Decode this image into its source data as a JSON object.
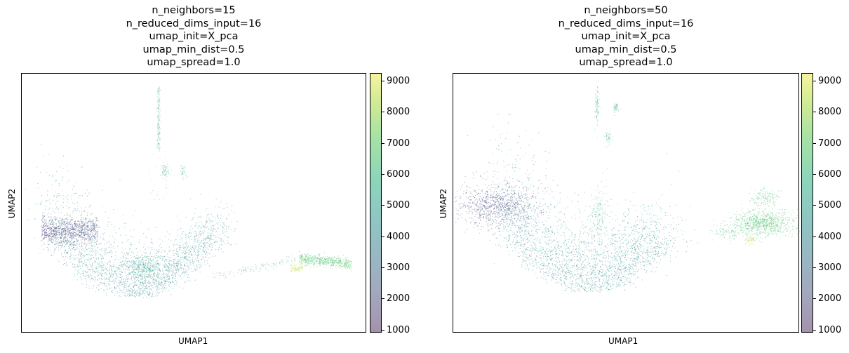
{
  "chart_data": [
    {
      "type": "scatter",
      "title_lines": [
        "n_neighbors=15",
        "n_reduced_dims_input=16",
        "umap_init=X_pca",
        "umap_min_dist=0.5",
        "umap_spread=1.0"
      ],
      "xlabel": "UMAP1",
      "ylabel": "UMAP2",
      "colorbar": {
        "ticks": [
          "1000",
          "2000",
          "3000",
          "4000",
          "5000",
          "6000",
          "7000",
          "8000",
          "9000"
        ],
        "range": [
          900,
          9250
        ],
        "colormap": "viridis (alpha 0.4)"
      },
      "grid": false,
      "clusters": [
        {
          "kind": "main-arc",
          "color_range": [
            2400,
            5200
          ]
        },
        {
          "kind": "top-dense-band",
          "color_range": [
            1200,
            3200
          ]
        },
        {
          "kind": "vertical-streak",
          "color_range": [
            3500,
            6000
          ]
        },
        {
          "kind": "right-tail",
          "color_range": [
            5500,
            7400
          ]
        },
        {
          "kind": "yellow-patch",
          "color_range": [
            7800,
            8800
          ]
        }
      ]
    },
    {
      "type": "scatter",
      "title_lines": [
        "n_neighbors=50",
        "n_reduced_dims_input=16",
        "umap_init=X_pca",
        "umap_min_dist=0.5",
        "umap_spread=1.0"
      ],
      "xlabel": "UMAP1",
      "ylabel": "UMAP2",
      "colorbar": {
        "ticks": [
          "1000",
          "2000",
          "3000",
          "4000",
          "5000",
          "6000",
          "7000",
          "8000",
          "9000"
        ],
        "range": [
          900,
          9250
        ],
        "colormap": "viridis (alpha 0.4)"
      },
      "grid": false,
      "clusters": [
        {
          "kind": "main-arc",
          "color_range": [
            2400,
            5200
          ]
        },
        {
          "kind": "top-dense-blob",
          "color_range": [
            1200,
            3000
          ]
        },
        {
          "kind": "vertical-streak",
          "color_range": [
            3500,
            5500
          ]
        },
        {
          "kind": "right-cluster",
          "color_range": [
            5000,
            7400
          ]
        },
        {
          "kind": "yellow-patch",
          "color_range": [
            7800,
            8800
          ]
        }
      ]
    }
  ]
}
